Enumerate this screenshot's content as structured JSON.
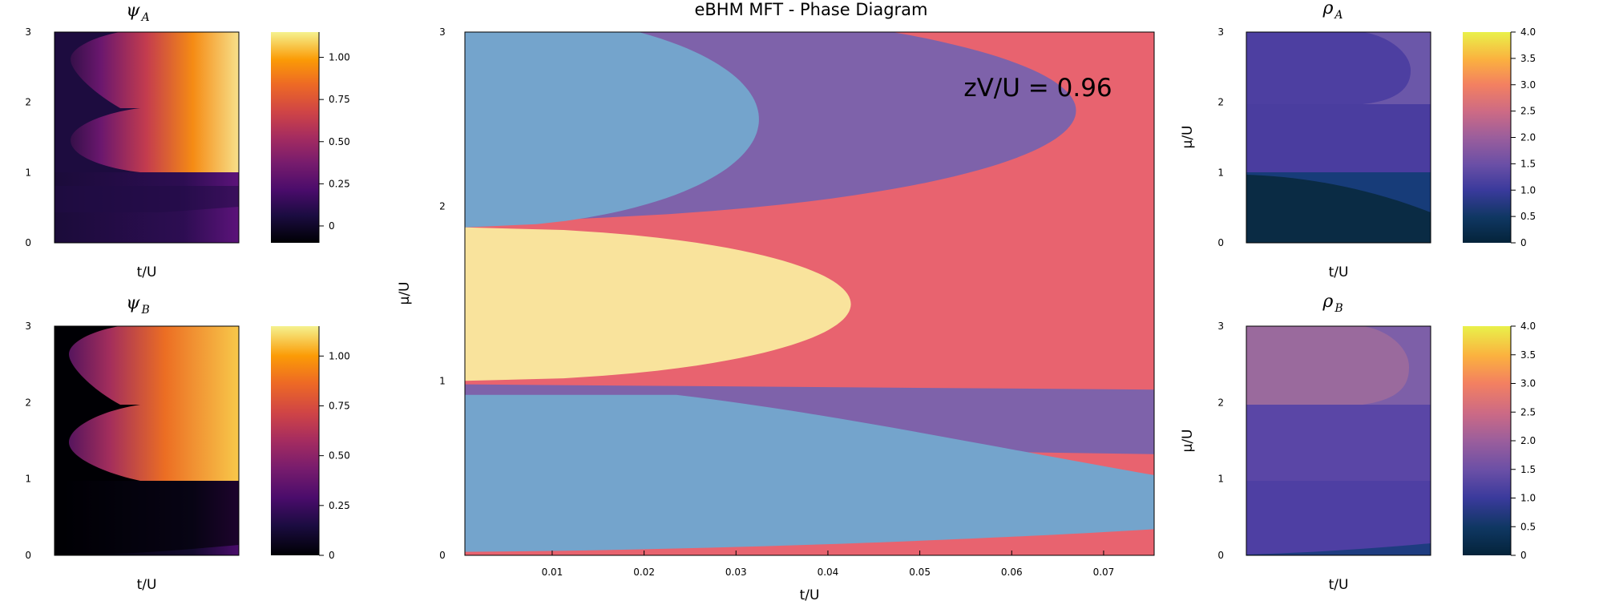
{
  "chart_data": [
    {
      "type": "heatmap",
      "panel": "psi_A",
      "title_symbol": "ψ",
      "title_sub": "A",
      "xlabel": "t/U",
      "ylabel": "",
      "yticks": [
        0,
        1,
        2,
        3
      ],
      "ylim": [
        0,
        3
      ],
      "colorscale": "inferno",
      "colorbar": {
        "ticks": [
          0,
          0.25,
          0.5,
          0.75,
          1.0
        ],
        "tick_labels": [
          "0",
          "0.25",
          "0.50",
          "0.75",
          "1.00"
        ],
        "range": [
          -0.1,
          1.15
        ]
      }
    },
    {
      "type": "heatmap",
      "panel": "psi_B",
      "title_symbol": "ψ",
      "title_sub": "B",
      "xlabel": "t/U",
      "ylabel": "",
      "yticks": [
        0,
        1,
        2,
        3
      ],
      "ylim": [
        0,
        3
      ],
      "colorscale": "inferno",
      "colorbar": {
        "ticks": [
          0,
          0.25,
          0.5,
          0.75,
          1.0
        ],
        "tick_labels": [
          "0",
          "0.25",
          "0.50",
          "0.75",
          "1.00"
        ],
        "range": [
          0,
          1.15
        ]
      }
    },
    {
      "type": "heatmap",
      "panel": "phase_diagram",
      "title": "eBHM MFT - Phase Diagram",
      "xlabel": "t/U",
      "ylabel": "μ/U",
      "annotation": "zV/U = 0.96",
      "xlim": [
        0.0005,
        0.0755
      ],
      "ylim": [
        0,
        3
      ],
      "xticks": [
        0.01,
        0.02,
        0.03,
        0.04,
        0.05,
        0.06,
        0.07
      ],
      "xtick_labels": [
        "0.01",
        "0.02",
        "0.03",
        "0.04",
        "0.05",
        "0.06",
        "0.07"
      ],
      "yticks": [
        0,
        1,
        2,
        3
      ],
      "phase_colors": {
        "red": "#e8636f",
        "blue": "#74a4cc",
        "purple": "#7e62aa",
        "yellow": "#f9e39c"
      },
      "regions": [
        {
          "phase": "yellow",
          "mu": [
            1.0,
            1.88
          ],
          "t_tip": 0.0425
        },
        {
          "phase": "blue",
          "mu": [
            1.88,
            3.0
          ],
          "t_tip": 0.0325
        },
        {
          "phase": "purple",
          "mu": [
            1.92,
            3.0
          ],
          "t_tip": 0.067
        },
        {
          "phase": "blue",
          "mu": [
            0.02,
            0.98
          ],
          "t_edge_low": 0.0755,
          "t_edge_high": 0.0235
        },
        {
          "phase": "purple",
          "mu": [
            0.58,
            0.98
          ],
          "t_edge": 0.0755
        },
        {
          "phase": "red",
          "region": "remainder"
        }
      ]
    },
    {
      "type": "heatmap",
      "panel": "rho_A",
      "title_symbol": "ρ",
      "title_sub": "A",
      "xlabel": "t/U",
      "ylabel": "μ/U",
      "yticks": [
        0,
        1,
        2,
        3
      ],
      "ylim": [
        0,
        3
      ],
      "colorscale": "thermal",
      "colorbar": {
        "ticks": [
          0,
          0.5,
          1.0,
          1.5,
          2.0,
          2.5,
          3.0,
          3.5,
          4.0
        ],
        "tick_labels": [
          "0",
          "0.5",
          "1.0",
          "1.5",
          "2.0",
          "2.5",
          "3.0",
          "3.5",
          "4.0"
        ],
        "range": [
          0,
          4
        ]
      }
    },
    {
      "type": "heatmap",
      "panel": "rho_B",
      "title_symbol": "ρ",
      "title_sub": "B",
      "xlabel": "t/U",
      "ylabel": "μ/U",
      "yticks": [
        0,
        1,
        2,
        3
      ],
      "ylim": [
        0,
        3
      ],
      "colorscale": "thermal",
      "colorbar": {
        "ticks": [
          0,
          0.5,
          1.0,
          1.5,
          2.0,
          2.5,
          3.0,
          3.5,
          4.0
        ],
        "tick_labels": [
          "0",
          "0.5",
          "1.0",
          "1.5",
          "2.0",
          "2.5",
          "3.0",
          "3.5",
          "4.0"
        ],
        "range": [
          0,
          4
        ]
      }
    }
  ]
}
